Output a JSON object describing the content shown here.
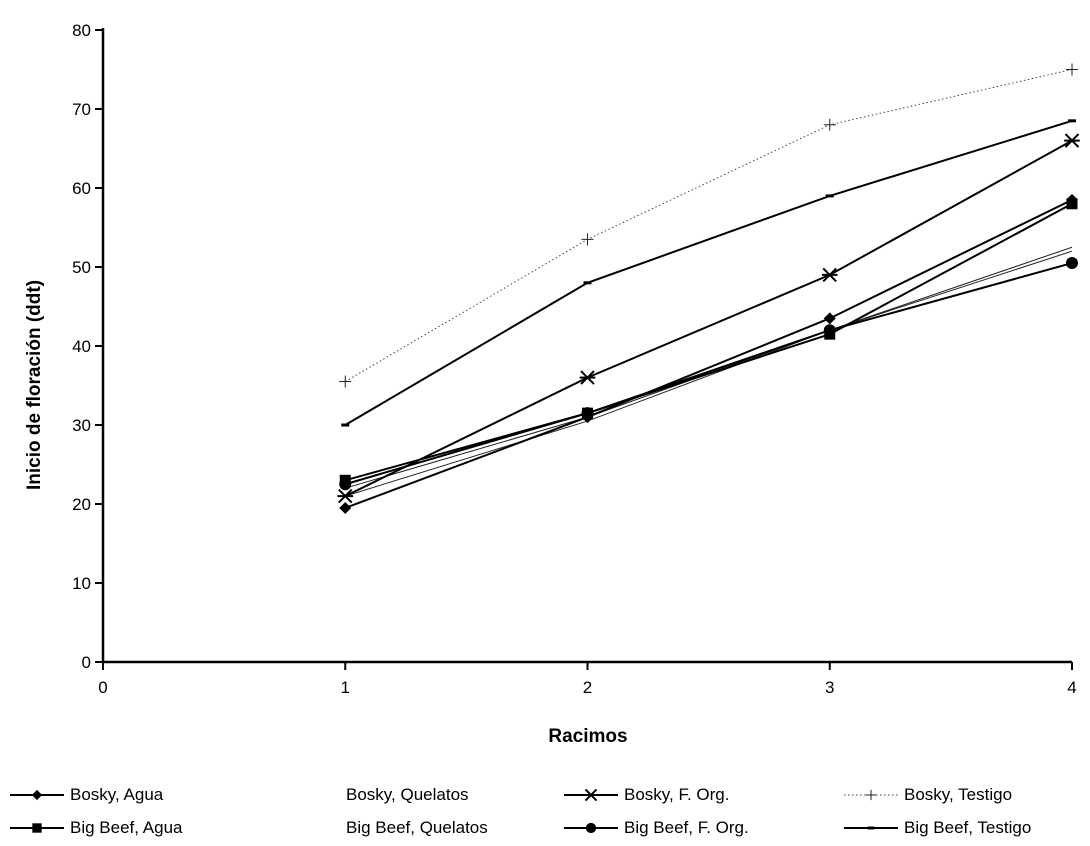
{
  "chart_data": {
    "type": "line",
    "title": "",
    "xlabel": "Racimos",
    "ylabel": "Inicio de floración (ddt)",
    "xlim": [
      0,
      4
    ],
    "ylim": [
      0,
      80
    ],
    "x_ticks": [
      0,
      1,
      2,
      3,
      4
    ],
    "y_ticks": [
      0,
      10,
      20,
      30,
      40,
      50,
      60,
      70,
      80
    ],
    "x": [
      1,
      2,
      3,
      4
    ],
    "grid": false,
    "legend_position": "bottom",
    "series": [
      {
        "name": "Bosky, Agua",
        "marker": "diamond",
        "line": "solid",
        "values": [
          19.5,
          31.0,
          43.5,
          58.5
        ]
      },
      {
        "name": "Big Beef, Agua",
        "marker": "square",
        "line": "solid",
        "values": [
          23.0,
          31.5,
          41.5,
          58.0
        ]
      },
      {
        "name": "Bosky, Quelatos",
        "marker": "none",
        "line": "thin",
        "values": [
          21.0,
          30.5,
          42.0,
          52.5
        ]
      },
      {
        "name": "Big Beef, Quelatos",
        "marker": "none",
        "line": "thin",
        "values": [
          22.0,
          31.0,
          42.0,
          52.0
        ]
      },
      {
        "name": "Bosky, F. Org.",
        "marker": "asterisk",
        "line": "solid",
        "values": [
          21.0,
          36.0,
          49.0,
          66.0
        ]
      },
      {
        "name": "Big Beef, F. Org.",
        "marker": "circle",
        "line": "solid",
        "values": [
          22.5,
          31.5,
          42.0,
          50.5
        ]
      },
      {
        "name": "Bosky, Testigo",
        "marker": "plus",
        "line": "dotted",
        "values": [
          35.5,
          53.5,
          68.0,
          75.0
        ]
      },
      {
        "name": "Big Beef, Testigo",
        "marker": "dash",
        "line": "solid",
        "values": [
          30.0,
          48.0,
          59.0,
          68.5
        ]
      }
    ]
  }
}
